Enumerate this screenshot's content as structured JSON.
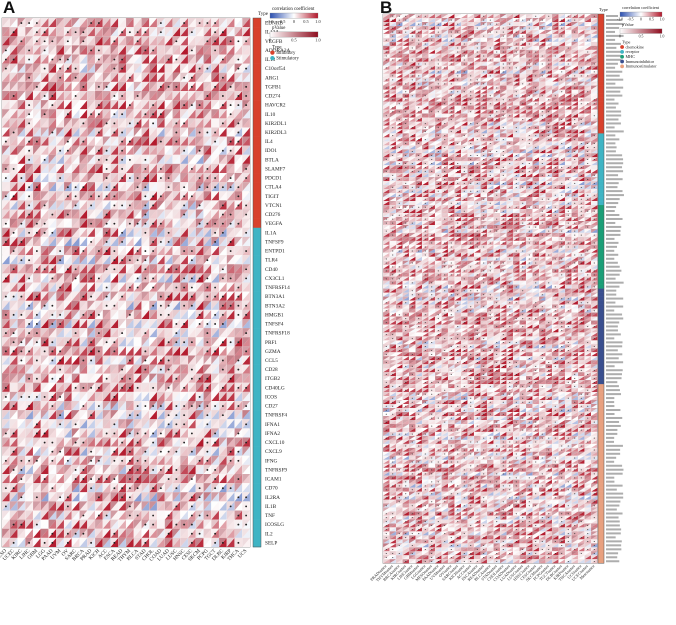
{
  "panels": [
    {
      "letter": "A"
    },
    {
      "letter": "B"
    }
  ],
  "chart_data": [
    {
      "type": "heatmap",
      "title": "",
      "type_column_label": "Type",
      "legend": {
        "correlation_title": "correlation coefficient",
        "correlation_ticks": [
          "-1.0",
          "-0.5",
          "0",
          "0.5",
          "1.0"
        ],
        "correlation_range": [
          -1.0,
          1.0
        ],
        "pvalue_title": "pValue",
        "pvalue_ticks": [
          "0",
          "0.5",
          "1.0"
        ],
        "type_title": "Type",
        "categories": [
          {
            "name": "Inhibitory",
            "color": "#d8412c"
          },
          {
            "name": "Stimulatory",
            "color": "#3fb4c4"
          }
        ]
      },
      "rows": [
        "EDNRB",
        "IL12A",
        "VEGFB",
        "ADORA2A",
        "IL13",
        "C10orf54",
        "ARG1",
        "TGFB1",
        "CD274",
        "HAVCR2",
        "IL10",
        "KIR2DL1",
        "KIR2DL3",
        "IL4",
        "IDO1",
        "BTLA",
        "SLAMF7",
        "PDCD1",
        "CTLA4",
        "TIGIT",
        "VTCN1",
        "CD276",
        "VEGFA",
        "IL1A",
        "TNFSF9",
        "ENTPD1",
        "TLR4",
        "CD40",
        "CX3CL1",
        "TNFRSF14",
        "BTN3A1",
        "BTN3A2",
        "HMGB1",
        "TNFSF4",
        "TNFRSF18",
        "PRF1",
        "GZMA",
        "CCL5",
        "CD28",
        "ITGB2",
        "CD40LG",
        "ICOS",
        "CD27",
        "TNFRSF4",
        "IFNA1",
        "IFNA2",
        "CXCL10",
        "CXCL9",
        "IFNG",
        "TNFRSF9",
        "ICAM1",
        "CD70",
        "IL2RA",
        "IL1B",
        "TNF",
        "ICOSLG",
        "IL2",
        "SELP"
      ],
      "row_types": [
        0,
        0,
        0,
        0,
        0,
        0,
        0,
        0,
        0,
        0,
        0,
        0,
        0,
        0,
        0,
        0,
        0,
        0,
        0,
        0,
        0,
        0,
        0,
        1,
        1,
        1,
        1,
        1,
        1,
        1,
        1,
        1,
        1,
        1,
        1,
        1,
        1,
        1,
        1,
        1,
        1,
        1,
        1,
        1,
        1,
        1,
        1,
        1,
        1,
        1,
        1,
        1,
        1,
        1,
        1,
        1,
        1,
        1
      ],
      "columns": [
        "MESO",
        "UCEC",
        "KIRC",
        "LIHC",
        "GBM",
        "LGG",
        "PAAD",
        "UVM",
        "OV",
        "SARC",
        "BRCA",
        "PRAD",
        "KICH",
        "ACC",
        "ESCA",
        "READ",
        "THYM",
        "BLCA",
        "STAD",
        "CHOL",
        "COAD",
        "LUAD",
        "LUSC",
        "HNSC",
        "CESC",
        "SKCM",
        "PCPG",
        "TGCT",
        "DLBC",
        "KIRP",
        "THCA",
        "UCS"
      ],
      "cell_encoding": "upper-left triangle = p-value shade, lower-right triangle = correlation colour, dot = significant",
      "matrix_note": "per-cell values not legible at source resolution; cells rendered from a dense red/white pattern"
    },
    {
      "type": "heatmap",
      "title": "",
      "type_column_label": "Type",
      "legend": {
        "correlation_title": "correlation coefficient",
        "correlation_ticks": [
          "-1.0",
          "-0.5",
          "0",
          "0.5",
          "1.0"
        ],
        "correlation_range": [
          -1.0,
          1.0
        ],
        "pvalue_title": "pValue",
        "pvalue_ticks": [
          "0",
          "0.5",
          "1.0"
        ],
        "type_title": "Type",
        "categories": [
          {
            "name": "chemokine",
            "color": "#d8412c"
          },
          {
            "name": "receptor",
            "color": "#3fb4c4"
          },
          {
            "name": "MHC",
            "color": "#1b9e77"
          },
          {
            "name": "Immunoinhibitor",
            "color": "#3a4f8f"
          },
          {
            "name": "Immunostimulator",
            "color": "#e8a07f"
          }
        ]
      },
      "type_counts": [
        30,
        18,
        21,
        24,
        45
      ],
      "columns": [
        "PRADtumor",
        "THYMtumor",
        "BRCAtumor",
        "KIRCtumor",
        "LIHCtumor",
        "GBMtumor",
        "LGGtumor",
        "MESOtumor",
        "PAADtumor",
        "UVMtumor",
        "OVtumor",
        "SARCtumor",
        "KICHtumor",
        "ACCtumor",
        "ESCAtumor",
        "READtumor",
        "BLCAtumor",
        "STADtumor",
        "CHOLtumor",
        "COADtumor",
        "LUADtumor",
        "LUSCtumor",
        "HNSCtumor",
        "CESCtumor",
        "SKCMtumor",
        "PCPGtumor",
        "TGCTtumor",
        "DLBCtumor",
        "KIRPtumor",
        "THCAtumor",
        "UCStumor",
        "UCECtumor",
        "Mesotumor"
      ],
      "matrix_note": "row labels and per-cell values not legible at source resolution"
    }
  ]
}
